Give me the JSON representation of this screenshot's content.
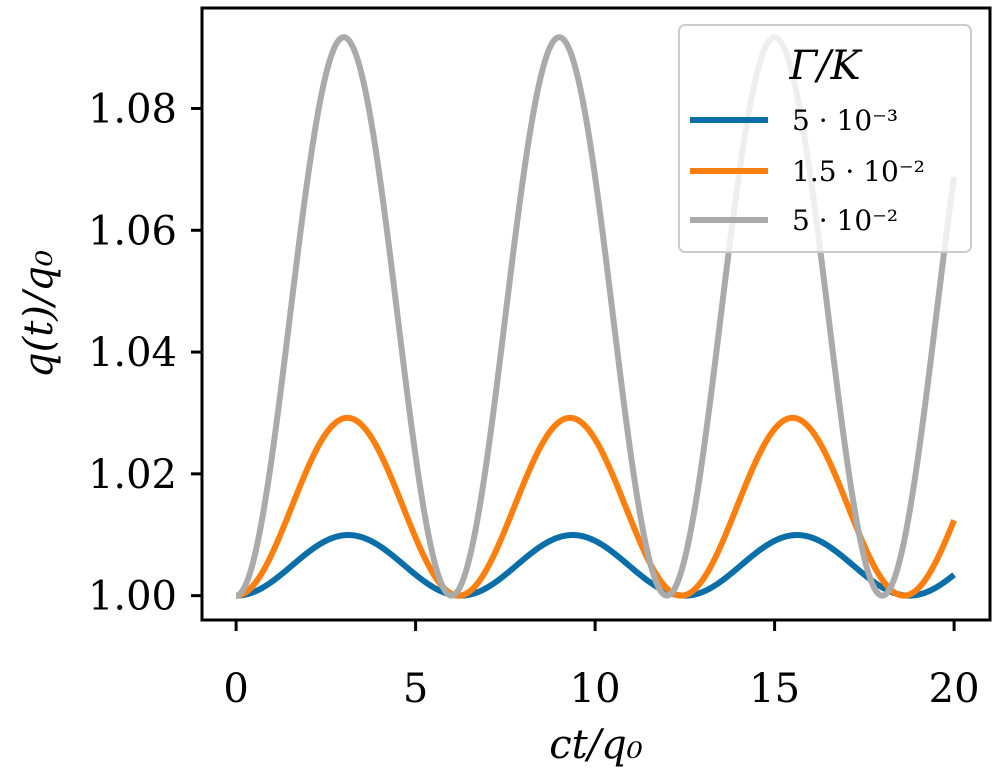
{
  "chart_data": {
    "type": "line",
    "title": "",
    "xlabel": "ct/q₀",
    "ylabel": "q(t)/q₀",
    "xlim": [
      -0.95,
      21.0
    ],
    "ylim": [
      0.996,
      1.0965
    ],
    "x_ticks": [
      0,
      5,
      10,
      15,
      20
    ],
    "x_tick_labels": [
      "0",
      "5",
      "10",
      "15",
      "20"
    ],
    "y_ticks": [
      1.0,
      1.02,
      1.04,
      1.06,
      1.08
    ],
    "y_tick_labels": [
      "1.00",
      "1.02",
      "1.04",
      "1.06",
      "1.08"
    ],
    "grid": false,
    "legend": {
      "title": "Γ/K",
      "placement": "top-right"
    },
    "series": [
      {
        "name": "5 · 10⁻³",
        "color": "#0a6fa8",
        "model": {
          "amplitude": 0.00995,
          "period": 6.25
        },
        "x_range": [
          0,
          20
        ]
      },
      {
        "name": "1.5 · 10⁻²",
        "color": "#ff7f0e",
        "model": {
          "amplitude": 0.0292,
          "period": 6.2
        },
        "x_range": [
          0,
          20
        ]
      },
      {
        "name": "5 · 10⁻²",
        "color": "#aaaaaa",
        "model": {
          "amplitude": 0.0917,
          "period": 6.0
        },
        "x_range": [
          0,
          20
        ]
      }
    ]
  }
}
